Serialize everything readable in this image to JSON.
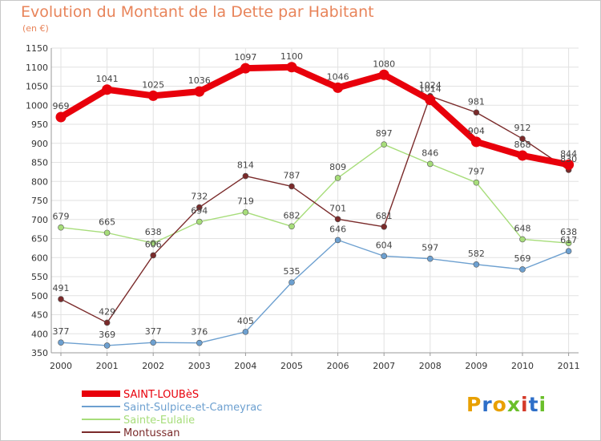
{
  "title": "Evolution du Montant de la Dette par Habitant",
  "subtitle": "(en €)",
  "logo_text": "Proxiti",
  "chart_data": {
    "type": "line",
    "title": "Evolution du Montant de la Dette par Habitant",
    "subtitle": "(en €)",
    "xlabel": "",
    "ylabel": "",
    "x": [
      "2000",
      "2001",
      "2002",
      "2003",
      "2004",
      "2005",
      "2006",
      "2007",
      "2008",
      "2009",
      "2010",
      "2011"
    ],
    "ylim": [
      350,
      1150
    ],
    "yticks": [
      350,
      400,
      450,
      500,
      550,
      600,
      650,
      700,
      750,
      800,
      850,
      900,
      950,
      1000,
      1050,
      1100,
      1150
    ],
    "grid": true,
    "legend_position": "bottom-left",
    "series": [
      {
        "name": "SAINT-LOUBèS",
        "color": "#e8000b",
        "values": [
          969,
          1041,
          1025,
          1036,
          1097,
          1100,
          1046,
          1080,
          1014,
          904,
          868,
          844
        ]
      },
      {
        "name": "Saint-Sulpice-et-Cameyrac",
        "color": "#6da0d0",
        "values": [
          377,
          369,
          377,
          376,
          405,
          535,
          646,
          604,
          597,
          582,
          569,
          617
        ]
      },
      {
        "name": "Sainte-Eulalie",
        "color": "#a7dd7a",
        "values": [
          679,
          665,
          638,
          694,
          719,
          682,
          809,
          897,
          846,
          797,
          648,
          638
        ]
      },
      {
        "name": "Montussan",
        "color": "#7a2a2a",
        "values": [
          491,
          429,
          606,
          732,
          814,
          787,
          701,
          681,
          1024,
          981,
          912,
          830
        ]
      }
    ]
  }
}
